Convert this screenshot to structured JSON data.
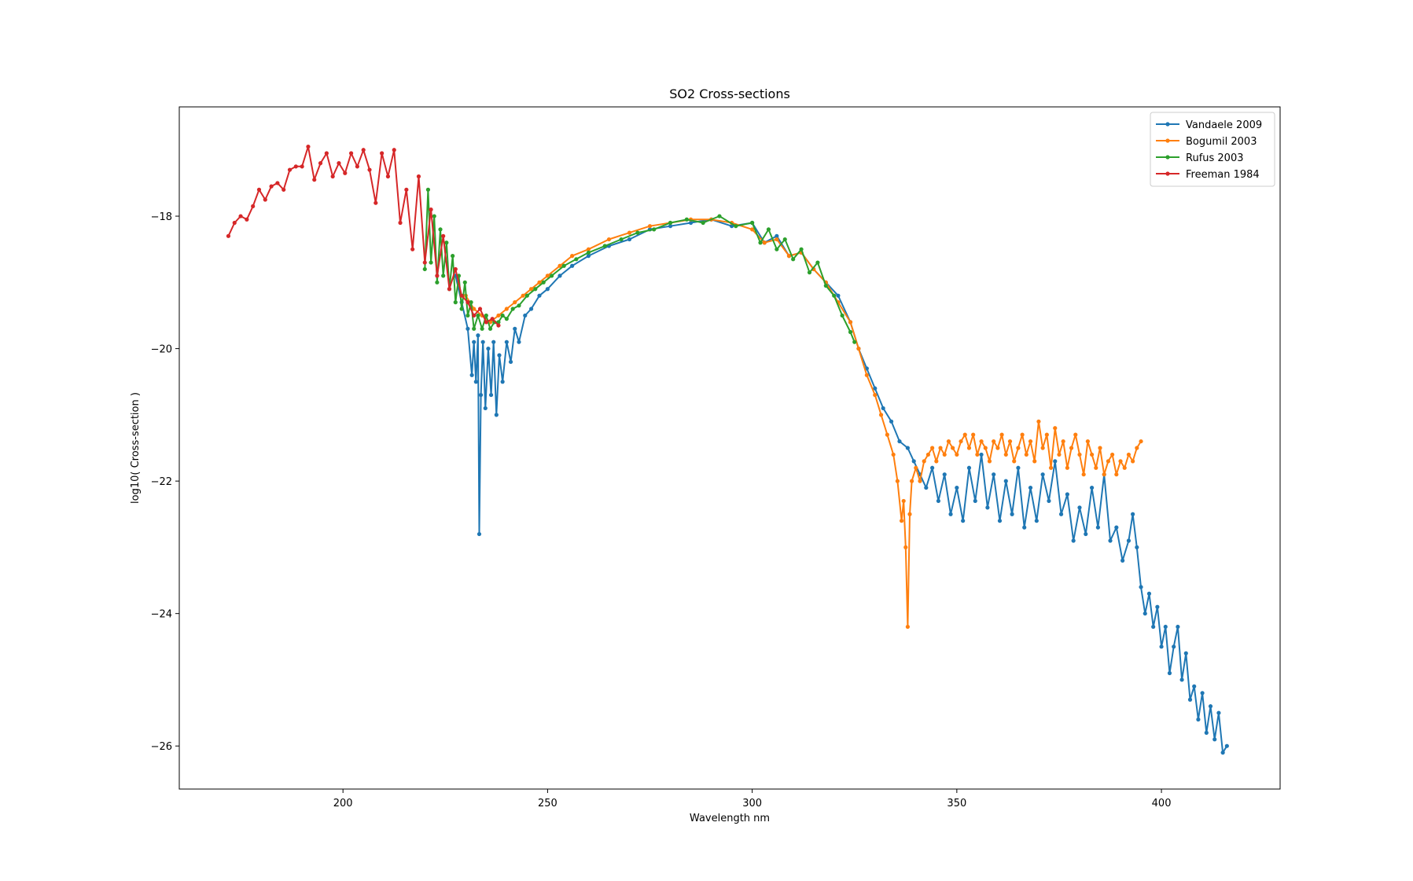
{
  "chart_data": {
    "type": "line",
    "title": "SO2 Cross-sections",
    "xlabel": "Wavelength nm",
    "ylabel": "log10( Cross-section )",
    "xlim": [
      160,
      429
    ],
    "ylim": [
      -26.65,
      -16.35
    ],
    "xticks": [
      200,
      250,
      300,
      350,
      400
    ],
    "yticks": [
      -18,
      -20,
      -22,
      -24,
      -26
    ],
    "xtick_labels": [
      "200",
      "250",
      "300",
      "350",
      "400"
    ],
    "ytick_labels": [
      "−18",
      "−20",
      "−22",
      "−24",
      "−26"
    ],
    "grid": false,
    "legend_position": "top-right",
    "series": [
      {
        "name": "Vandaele 2009",
        "color": "#1f77b4",
        "x": [
          227.5,
          229.0,
          230.5,
          231.5,
          232.0,
          232.5,
          233.0,
          233.3,
          233.7,
          234.2,
          234.8,
          235.5,
          236.2,
          236.8,
          237.5,
          238.2,
          239.0,
          240.0,
          241.0,
          242.0,
          243.0,
          244.5,
          246.0,
          248.0,
          250.0,
          253.0,
          256.0,
          260.0,
          265.0,
          270.0,
          275.0,
          280.0,
          285.0,
          290.0,
          295.0,
          300.0,
          303.0,
          306.0,
          309.0,
          312.0,
          315.0,
          318.0,
          321.0,
          324.0,
          326.0,
          328.0,
          330.0,
          332.0,
          334.0,
          336.0,
          338.0,
          339.5,
          341.0,
          342.5,
          344.0,
          345.5,
          347.0,
          348.5,
          350.0,
          351.5,
          353.0,
          354.5,
          356.0,
          357.5,
          359.0,
          360.5,
          362.0,
          363.5,
          365.0,
          366.5,
          368.0,
          369.5,
          371.0,
          372.5,
          374.0,
          375.5,
          377.0,
          378.5,
          380.0,
          381.5,
          383.0,
          384.5,
          386.0,
          387.5,
          389.0,
          390.5,
          392.0,
          393.0,
          394.0,
          395.0,
          396.0,
          397.0,
          398.0,
          399.0,
          400.0,
          401.0,
          402.0,
          403.0,
          404.0,
          405.0,
          406.0,
          407.0,
          408.0,
          409.0,
          410.0,
          411.0,
          412.0,
          413.0,
          414.0,
          415.0,
          416.0
        ],
        "y": [
          -18.9,
          -19.3,
          -19.7,
          -20.4,
          -19.9,
          -20.5,
          -19.8,
          -22.8,
          -20.7,
          -19.9,
          -20.9,
          -20.0,
          -20.7,
          -19.9,
          -21.0,
          -20.1,
          -20.5,
          -19.9,
          -20.2,
          -19.7,
          -19.9,
          -19.5,
          -19.4,
          -19.2,
          -19.1,
          -18.9,
          -18.75,
          -18.6,
          -18.45,
          -18.35,
          -18.2,
          -18.15,
          -18.1,
          -18.05,
          -18.15,
          -18.1,
          -18.4,
          -18.3,
          -18.6,
          -18.55,
          -18.8,
          -19.0,
          -19.2,
          -19.6,
          -20.0,
          -20.3,
          -20.6,
          -20.9,
          -21.1,
          -21.4,
          -21.5,
          -21.7,
          -21.9,
          -22.1,
          -21.8,
          -22.3,
          -21.9,
          -22.5,
          -22.1,
          -22.6,
          -21.8,
          -22.3,
          -21.6,
          -22.4,
          -21.9,
          -22.6,
          -22.0,
          -22.5,
          -21.8,
          -22.7,
          -22.1,
          -22.6,
          -21.9,
          -22.3,
          -21.7,
          -22.5,
          -22.2,
          -22.9,
          -22.4,
          -22.8,
          -22.1,
          -22.7,
          -21.9,
          -22.9,
          -22.7,
          -23.2,
          -22.9,
          -22.5,
          -23.0,
          -23.6,
          -24.0,
          -23.7,
          -24.2,
          -23.9,
          -24.5,
          -24.2,
          -24.9,
          -24.5,
          -24.2,
          -25.0,
          -24.6,
          -25.3,
          -25.1,
          -25.6,
          -25.2,
          -25.8,
          -25.4,
          -25.9,
          -25.5,
          -26.1,
          -26.0
        ]
      },
      {
        "name": "Bogumil 2003",
        "color": "#ff7f0e",
        "x": [
          230.0,
          232.0,
          234.0,
          236.0,
          238.0,
          240.0,
          242.0,
          244.0,
          246.0,
          248.0,
          250.0,
          253.0,
          256.0,
          260.0,
          265.0,
          270.0,
          275.0,
          280.0,
          285.0,
          290.0,
          295.0,
          300.0,
          303.0,
          306.0,
          309.0,
          312.0,
          315.0,
          318.0,
          321.0,
          324.0,
          326.0,
          328.0,
          330.0,
          331.5,
          333.0,
          334.5,
          335.5,
          336.5,
          337.0,
          337.5,
          338.0,
          338.5,
          339.0,
          340.0,
          341.0,
          342.0,
          343.0,
          344.0,
          345.0,
          346.0,
          347.0,
          348.0,
          349.0,
          350.0,
          351.0,
          352.0,
          353.0,
          354.0,
          355.0,
          356.0,
          357.0,
          358.0,
          359.0,
          360.0,
          361.0,
          362.0,
          363.0,
          364.0,
          365.0,
          366.0,
          367.0,
          368.0,
          369.0,
          370.0,
          371.0,
          372.0,
          373.0,
          374.0,
          375.0,
          376.0,
          377.0,
          378.0,
          379.0,
          380.0,
          381.0,
          382.0,
          383.0,
          384.0,
          385.0,
          386.0,
          387.0,
          388.0,
          389.0,
          390.0,
          391.0,
          392.0,
          393.0,
          394.0,
          395.0
        ],
        "y": [
          -19.2,
          -19.4,
          -19.5,
          -19.6,
          -19.5,
          -19.4,
          -19.3,
          -19.2,
          -19.1,
          -19.0,
          -18.9,
          -18.75,
          -18.6,
          -18.5,
          -18.35,
          -18.25,
          -18.15,
          -18.1,
          -18.05,
          -18.05,
          -18.1,
          -18.2,
          -18.4,
          -18.35,
          -18.6,
          -18.55,
          -18.8,
          -19.0,
          -19.3,
          -19.6,
          -20.0,
          -20.4,
          -20.7,
          -21.0,
          -21.3,
          -21.6,
          -22.0,
          -22.6,
          -22.3,
          -23.0,
          -24.2,
          -22.5,
          -22.0,
          -21.8,
          -22.0,
          -21.7,
          -21.6,
          -21.5,
          -21.7,
          -21.5,
          -21.6,
          -21.4,
          -21.5,
          -21.6,
          -21.4,
          -21.3,
          -21.5,
          -21.3,
          -21.6,
          -21.4,
          -21.5,
          -21.7,
          -21.4,
          -21.5,
          -21.3,
          -21.6,
          -21.4,
          -21.7,
          -21.5,
          -21.3,
          -21.6,
          -21.4,
          -21.7,
          -21.1,
          -21.5,
          -21.3,
          -21.8,
          -21.2,
          -21.6,
          -21.4,
          -21.8,
          -21.5,
          -21.3,
          -21.6,
          -21.9,
          -21.4,
          -21.6,
          -21.8,
          -21.5,
          -21.9,
          -21.7,
          -21.6,
          -21.9,
          -21.7,
          -21.8,
          -21.6,
          -21.7,
          -21.5,
          -21.4
        ]
      },
      {
        "name": "Rufus 2003",
        "color": "#2ca02c",
        "x": [
          220.0,
          220.8,
          221.5,
          222.3,
          223.0,
          223.8,
          224.5,
          225.3,
          226.0,
          226.8,
          227.5,
          228.3,
          229.0,
          229.8,
          230.5,
          231.3,
          232.0,
          233.0,
          234.0,
          235.0,
          236.0,
          237.0,
          238.0,
          239.0,
          240.0,
          241.5,
          243.0,
          245.0,
          247.0,
          249.0,
          251.0,
          254.0,
          257.0,
          260.0,
          264.0,
          268.0,
          272.0,
          276.0,
          280.0,
          284.0,
          288.0,
          292.0,
          296.0,
          300.0,
          302.0,
          304.0,
          306.0,
          308.0,
          310.0,
          312.0,
          314.0,
          316.0,
          318.0,
          320.0,
          322.0,
          324.0,
          325.0
        ],
        "y": [
          -18.8,
          -17.6,
          -18.7,
          -18.0,
          -19.0,
          -18.2,
          -18.9,
          -18.4,
          -19.1,
          -18.6,
          -19.3,
          -18.9,
          -19.4,
          -19.0,
          -19.5,
          -19.3,
          -19.7,
          -19.5,
          -19.7,
          -19.5,
          -19.7,
          -19.6,
          -19.6,
          -19.5,
          -19.55,
          -19.4,
          -19.35,
          -19.2,
          -19.1,
          -19.0,
          -18.9,
          -18.75,
          -18.65,
          -18.55,
          -18.45,
          -18.35,
          -18.25,
          -18.2,
          -18.1,
          -18.05,
          -18.1,
          -18.0,
          -18.15,
          -18.1,
          -18.4,
          -18.2,
          -18.5,
          -18.35,
          -18.65,
          -18.5,
          -18.85,
          -18.7,
          -19.05,
          -19.2,
          -19.5,
          -19.75,
          -19.9
        ]
      },
      {
        "name": "Freeman 1984",
        "color": "#d62728",
        "x": [
          172.0,
          173.5,
          175.0,
          176.5,
          178.0,
          179.5,
          181.0,
          182.5,
          184.0,
          185.5,
          187.0,
          188.5,
          190.0,
          191.5,
          193.0,
          194.5,
          196.0,
          197.5,
          199.0,
          200.5,
          202.0,
          203.5,
          205.0,
          206.5,
          208.0,
          209.5,
          211.0,
          212.5,
          214.0,
          215.5,
          217.0,
          218.5,
          220.0,
          221.5,
          223.0,
          224.5,
          226.0,
          227.5,
          229.0,
          230.5,
          232.0,
          233.5,
          235.0,
          236.5,
          238.0
        ],
        "y": [
          -18.3,
          -18.1,
          -18.0,
          -18.05,
          -17.85,
          -17.6,
          -17.75,
          -17.55,
          -17.5,
          -17.6,
          -17.3,
          -17.25,
          -17.25,
          -16.95,
          -17.45,
          -17.2,
          -17.05,
          -17.4,
          -17.2,
          -17.35,
          -17.05,
          -17.25,
          -17.0,
          -17.3,
          -17.8,
          -17.05,
          -17.4,
          -17.0,
          -18.1,
          -17.6,
          -18.5,
          -17.4,
          -18.7,
          -17.9,
          -18.9,
          -18.3,
          -19.1,
          -18.8,
          -19.2,
          -19.3,
          -19.5,
          -19.4,
          -19.6,
          -19.55,
          -19.65
        ]
      }
    ]
  }
}
